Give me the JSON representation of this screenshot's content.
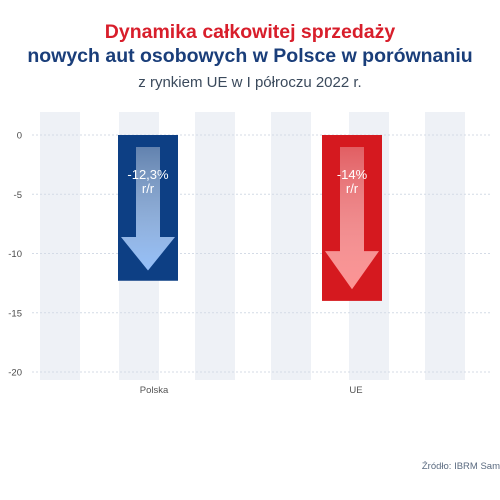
{
  "header": {
    "title_line1": "Dynamika całkowitej sprzedaży",
    "title_line2": "nowych aut osobowych w Polsce w porównaniu",
    "subtitle": "z rynkiem UE w I półroczu 2022 r."
  },
  "source": "Źródło: IBRM Sam",
  "colors": {
    "poland": "#0d3f84",
    "eu": "#d5191f",
    "stripe": "#eef1f6"
  },
  "chart_data": {
    "type": "bar",
    "categories": [
      "Polska",
      "UE"
    ],
    "values": [
      -12.3,
      -14
    ],
    "data_labels": [
      [
        "-12,3%",
        "r/r"
      ],
      [
        "-14%",
        "r/r"
      ]
    ],
    "yticks": [
      0,
      -5,
      -10,
      -15,
      -20
    ],
    "ylim": [
      -20,
      0
    ],
    "grid": true,
    "legend": "none"
  }
}
